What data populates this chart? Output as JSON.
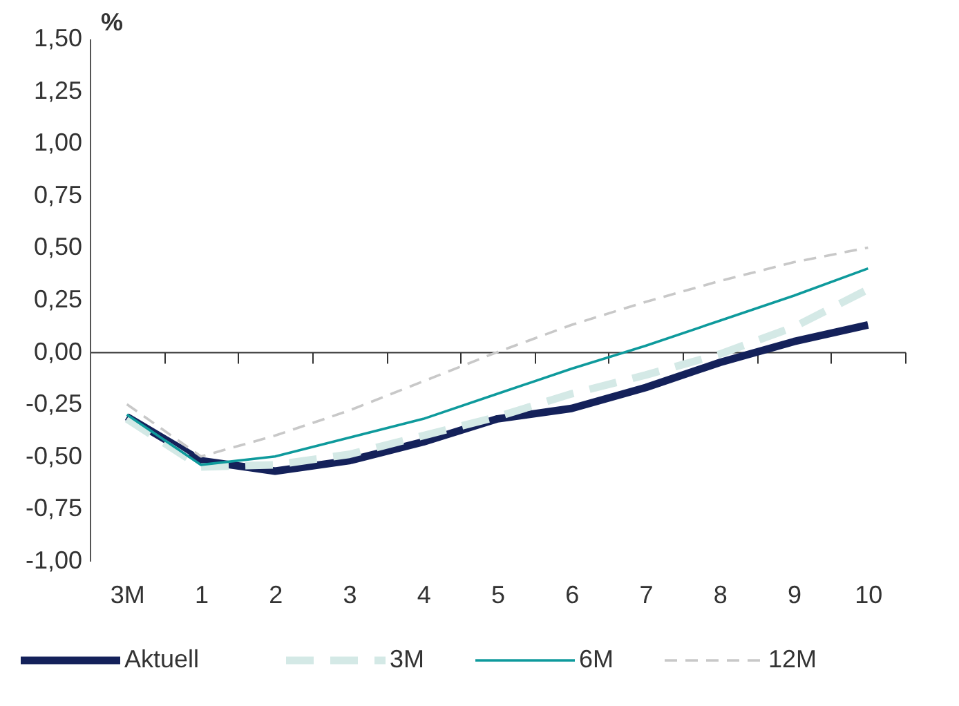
{
  "chart_data": {
    "type": "line",
    "ylabel": "%",
    "categories": [
      "3M",
      "1",
      "2",
      "3",
      "4",
      "5",
      "6",
      "7",
      "8",
      "9",
      "10"
    ],
    "series": [
      {
        "name": "Aktuell",
        "color": "#14215a",
        "line_style": "solid",
        "values": [
          -0.31,
          -0.52,
          -0.57,
          -0.52,
          -0.43,
          -0.32,
          -0.27,
          -0.17,
          -0.05,
          0.05,
          0.13
        ]
      },
      {
        "name": "3M",
        "color": "#d4e9e6",
        "line_style": "dashed",
        "values": [
          -0.32,
          -0.55,
          -0.54,
          -0.49,
          -0.4,
          -0.31,
          -0.2,
          -0.11,
          -0.01,
          0.12,
          0.3
        ]
      },
      {
        "name": "6M",
        "color": "#0e9a9c",
        "line_style": "solid",
        "values": [
          -0.3,
          -0.54,
          -0.5,
          -0.41,
          -0.32,
          -0.2,
          -0.08,
          0.03,
          0.15,
          0.27,
          0.4
        ]
      },
      {
        "name": "12M",
        "color": "#c8c8c8",
        "line_style": "dashed",
        "values": [
          -0.25,
          -0.5,
          -0.4,
          -0.28,
          -0.14,
          0.0,
          0.13,
          0.24,
          0.34,
          0.43,
          0.5
        ]
      }
    ],
    "ylim": [
      -1.0,
      1.5
    ],
    "yticks": [
      {
        "value": -1.0,
        "label": "-1,00"
      },
      {
        "value": -0.75,
        "label": "-0,75"
      },
      {
        "value": -0.5,
        "label": "-0,50"
      },
      {
        "value": -0.25,
        "label": "-0,25"
      },
      {
        "value": 0,
        "label": "0,00"
      },
      {
        "value": 0.25,
        "label": "0,25"
      },
      {
        "value": 0.5,
        "label": "0,50"
      },
      {
        "value": 0.75,
        "label": "0,75"
      },
      {
        "value": 1.0,
        "label": "1,00"
      },
      {
        "value": 1.25,
        "label": "1,25"
      },
      {
        "value": 1.5,
        "label": "1,50"
      }
    ],
    "legend": "bottom",
    "marker": "none"
  }
}
